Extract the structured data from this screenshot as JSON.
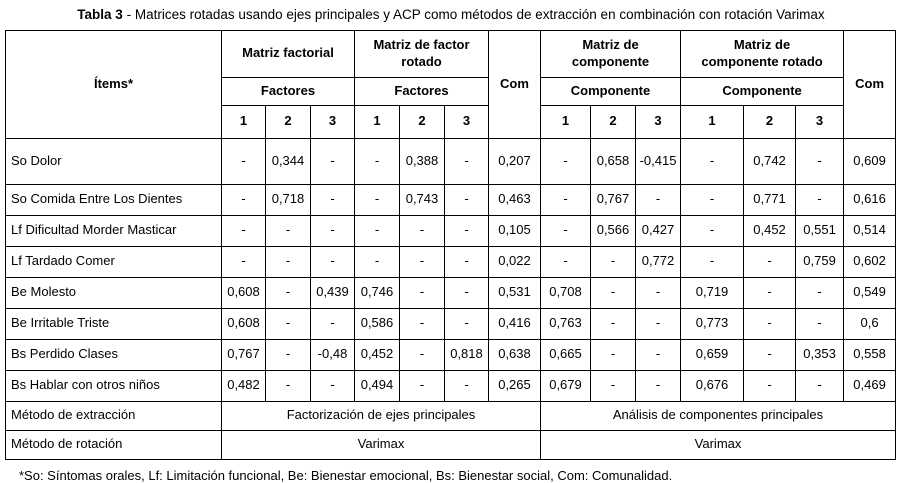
{
  "title": {
    "label": "Tabla 3",
    "text": " - Matrices rotadas usando ejes principales y ACP como métodos de extracción en combinación con rotación Varimax"
  },
  "table": {
    "items_header": "Ítems*",
    "com_header": "Com",
    "groups": [
      {
        "title": "Matriz factorial",
        "subtitle": "Factores",
        "cols": [
          "1",
          "2",
          "3"
        ]
      },
      {
        "title": "Matriz de factor rotado",
        "subtitle": "Factores",
        "cols": [
          "1",
          "2",
          "3"
        ]
      },
      {
        "title": "Matriz de componente",
        "subtitle": "Componente",
        "cols": [
          "1",
          "2",
          "3"
        ]
      },
      {
        "title": "Matriz de componente rotado",
        "subtitle": "Componente",
        "cols": [
          "1",
          "2",
          "3"
        ]
      }
    ],
    "rows": [
      {
        "item": "So Dolor",
        "values": [
          "-",
          "0,344",
          "-",
          "-",
          "0,388",
          "-",
          "0,207",
          "-",
          "0,658",
          "-0,415",
          "-",
          "0,742",
          "-",
          "0,609"
        ]
      },
      {
        "item": "So Comida Entre Los Dientes",
        "values": [
          "-",
          "0,718",
          "-",
          "-",
          "0,743",
          "-",
          "0,463",
          "-",
          "0,767",
          "-",
          "-",
          "0,771",
          "-",
          "0,616"
        ]
      },
      {
        "item": "Lf Dificultad Morder Masticar",
        "values": [
          "-",
          "-",
          "-",
          "-",
          "-",
          "-",
          "0,105",
          "-",
          "0,566",
          "0,427",
          "-",
          "0,452",
          "0,551",
          "0,514"
        ]
      },
      {
        "item": "Lf Tardado Comer",
        "values": [
          "-",
          "-",
          "-",
          "-",
          "-",
          "-",
          "0,022",
          "-",
          "-",
          "0,772",
          "-",
          "-",
          "0,759",
          "0,602"
        ]
      },
      {
        "item": "Be Molesto",
        "values": [
          "0,608",
          "-",
          "0,439",
          "0,746",
          "-",
          "-",
          "0,531",
          "0,708",
          "-",
          "-",
          "0,719",
          "-",
          "-",
          "0,549"
        ]
      },
      {
        "item": "Be Irritable Triste",
        "values": [
          "0,608",
          "-",
          "-",
          "0,586",
          "-",
          "-",
          "0,416",
          "0,763",
          "-",
          "-",
          "0,773",
          "-",
          "-",
          "0,6"
        ]
      },
      {
        "item": "Bs Perdido Clases",
        "values": [
          "0,767",
          "-",
          "-0,48",
          "0,452",
          "-",
          "0,818",
          "0,638",
          "0,665",
          "-",
          "-",
          "0,659",
          "-",
          "0,353",
          "0,558"
        ]
      },
      {
        "item": "Bs Hablar con otros niños",
        "values": [
          "0,482",
          "-",
          "-",
          "0,494",
          "-",
          "-",
          "0,265",
          "0,679",
          "-",
          "-",
          "0,676",
          "-",
          "-",
          "0,469"
        ]
      }
    ],
    "extraction": {
      "label": "Método de extracción",
      "left": "Factorización de ejes principales",
      "right": "Análisis de componentes principales"
    },
    "rotation": {
      "label": "Método de rotación",
      "left": "Varimax",
      "right": "Varimax"
    }
  },
  "footnote": "*So: Síntomas orales, Lf: Limitación funcional, Be: Bienestar emocional, Bs: Bienestar social, Com: Comunalidad."
}
